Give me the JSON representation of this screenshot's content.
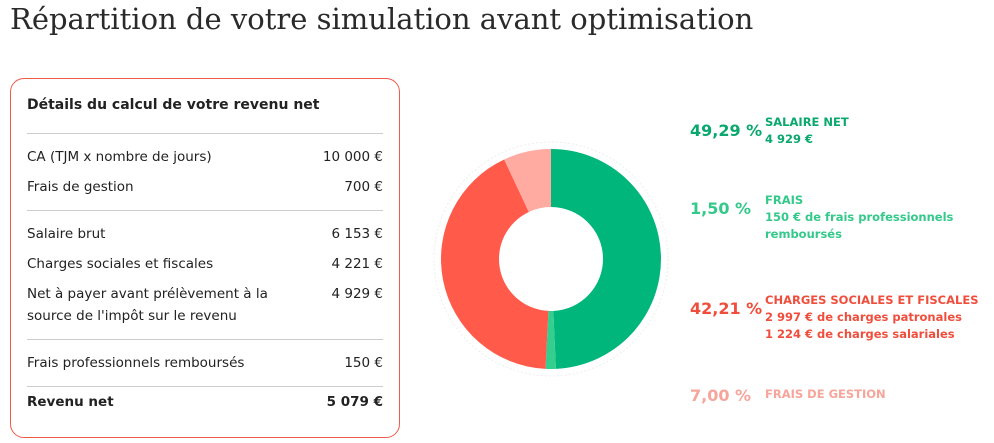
{
  "title": "Répartition de votre simulation avant optimisation",
  "details": {
    "title": "Détails du calcul de votre revenu net",
    "groups": [
      [
        [
          "CA (TJM x nombre de jours)",
          "10 000 €"
        ],
        [
          "Frais de gestion",
          "700 €"
        ]
      ],
      [
        [
          "Salaire brut",
          "6 153 €"
        ],
        [
          "Charges sociales et fiscales",
          "4 221 €"
        ],
        [
          "Net à payer avant prélèvement à la source de l'impôt sur le revenu",
          "4 929 €"
        ]
      ],
      [
        [
          "Frais professionnels remboursés",
          "150 €"
        ]
      ]
    ],
    "total": [
      "Revenu net",
      "5 079 €"
    ]
  },
  "chart_data": {
    "type": "donut",
    "categories": [
      "SALAIRE NET",
      "FRAIS",
      "CHARGES SOCIALES ET FISCALES",
      "FRAIS DE GESTION"
    ],
    "values": [
      49.29,
      1.5,
      42.21,
      7.0
    ],
    "value_labels": [
      "49,29 %",
      "1,50 %",
      "42,21 %",
      "7,00 %"
    ],
    "descriptions": [
      [
        "4 929 €"
      ],
      [
        "150 € de frais professionnels remboursés"
      ],
      [
        "2 997 € de charges patronales",
        "1 224 € de charges salariales"
      ],
      []
    ],
    "colors": [
      "#00b67a",
      "#34cf8f",
      "#ff5a4a",
      "#ffaba2"
    ],
    "text_colors": [
      "#0aa86e",
      "#34c98b",
      "#f04e3c",
      "#f7a59b"
    ]
  }
}
